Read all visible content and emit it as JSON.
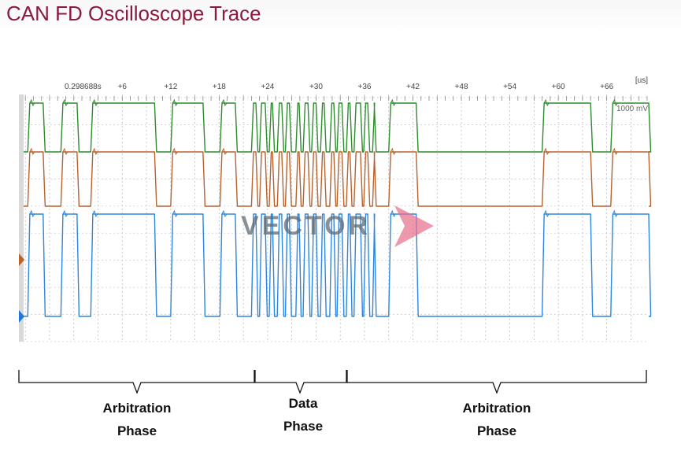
{
  "title": "CAN FD Oscilloscope Trace",
  "chart_data": {
    "type": "line",
    "x_unit_label": "[us]",
    "x_start_label": "0.298688s",
    "x_tick_labels": [
      "+6",
      "+12",
      "+18",
      "+24",
      "+30",
      "+36",
      "+42",
      "+48",
      "+54",
      "+60",
      "+66"
    ],
    "x_range_us": [
      -6.8,
      71.2
    ],
    "y_scale_label": "1000 mV",
    "grid": true,
    "logo_text": "VECTOR",
    "series": [
      {
        "id": "can-high",
        "color": "#2e8b2e",
        "low_level": 0,
        "high_level": 1,
        "arbitration_high_intervals_us": [
          [
            -5.7,
            -3.8
          ],
          [
            -1.6,
            0.4
          ],
          [
            2.1,
            10.0
          ],
          [
            12.0,
            16.0
          ],
          [
            18.1,
            20.0
          ],
          [
            39.0,
            42.4
          ],
          [
            58.0,
            64.0
          ],
          [
            66.5,
            71.2
          ]
        ],
        "data_phase_us": [
          22.0,
          37.2
        ]
      },
      {
        "id": "can-low",
        "color": "#b8622e",
        "low_level": 0,
        "high_level": 1,
        "arbitration_high_intervals_us": [
          [
            -5.7,
            -3.8
          ],
          [
            -1.6,
            0.4
          ],
          [
            2.1,
            10.0
          ],
          [
            12.0,
            16.0
          ],
          [
            18.1,
            20.0
          ],
          [
            39.0,
            42.4
          ],
          [
            58.0,
            64.0
          ],
          [
            66.5,
            71.2
          ]
        ],
        "data_phase_us": [
          22.0,
          37.2
        ]
      },
      {
        "id": "can-differential",
        "color": "#2e86de",
        "low_level": 0,
        "high_level": 1,
        "arbitration_high_intervals_us": [
          [
            -5.7,
            -3.8
          ],
          [
            -1.6,
            0.4
          ],
          [
            2.1,
            10.0
          ],
          [
            12.0,
            16.0
          ],
          [
            18.1,
            20.0
          ],
          [
            39.0,
            42.4
          ],
          [
            58.0,
            64.0
          ],
          [
            66.5,
            71.2
          ]
        ],
        "data_phase_us": [
          22.0,
          37.2
        ]
      }
    ]
  },
  "phases": [
    {
      "line1": "Arbitration",
      "line2": "Phase"
    },
    {
      "line1": "Data",
      "line2": "Phase"
    },
    {
      "line1": "Arbitration",
      "line2": "Phase"
    }
  ]
}
